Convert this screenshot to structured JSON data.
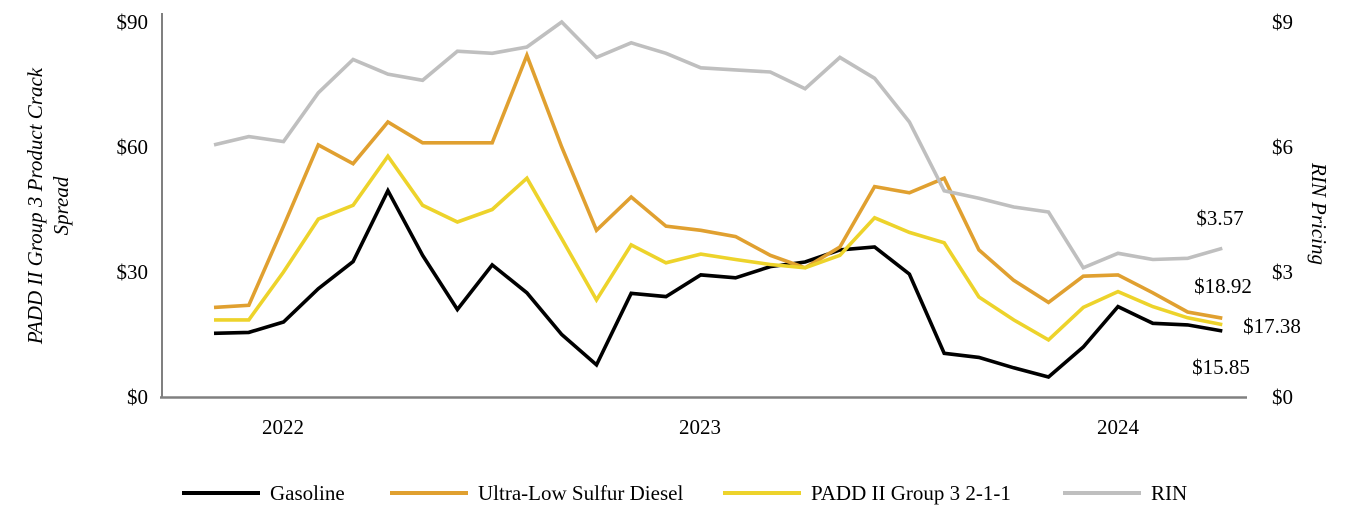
{
  "chart_data": {
    "type": "line",
    "x_monthly": [
      "2021-11",
      "2021-12",
      "2022-01",
      "2022-02",
      "2022-03",
      "2022-04",
      "2022-05",
      "2022-06",
      "2022-07",
      "2022-08",
      "2022-09",
      "2022-10",
      "2022-11",
      "2022-12",
      "2023-01",
      "2023-02",
      "2023-03",
      "2023-04",
      "2023-05",
      "2023-06",
      "2023-07",
      "2023-08",
      "2023-09",
      "2023-10",
      "2023-11",
      "2023-12",
      "2024-01",
      "2024-02",
      "2024-03",
      "2024-04"
    ],
    "series": [
      {
        "name": "Gasoline",
        "axis": "left",
        "color": "#000000",
        "values": [
          15.3,
          15.5,
          18,
          26,
          32.5,
          49.5,
          34,
          21,
          31.7,
          25,
          15,
          7.7,
          24.9,
          24.1,
          29.3,
          28.6,
          31.3,
          32.4,
          35.3,
          36,
          29.5,
          10.5,
          9.5,
          7,
          4.8,
          12,
          21.7,
          17.7,
          17.3,
          15.85
        ]
      },
      {
        "name": "Ultra-Low Sulfur Diesel",
        "axis": "left",
        "color": "#E0A030",
        "values": [
          21.5,
          22,
          41,
          60.5,
          56,
          66,
          61,
          61,
          61,
          82,
          60,
          40,
          48,
          41,
          40,
          38.5,
          34,
          31,
          36,
          50.5,
          49,
          52.5,
          35.3,
          28,
          22.7,
          29,
          29.3,
          25,
          20.4,
          18.92
        ]
      },
      {
        "name": "PADD II Group 3 2-1-1",
        "axis": "left",
        "color": "#EDD32B",
        "values": [
          18.5,
          18.5,
          30,
          42.7,
          46,
          57.8,
          46,
          42,
          45,
          52.5,
          38,
          23.3,
          36.5,
          32.2,
          34.3,
          33,
          31.8,
          31,
          34,
          43,
          39.5,
          37,
          24,
          18.5,
          13.7,
          21.5,
          25.3,
          21.7,
          19,
          17.38
        ]
      },
      {
        "name": "RIN",
        "axis": "right",
        "color": "#BFBFBF",
        "values": [
          6.05,
          6.25,
          6.13,
          7.3,
          8.1,
          7.75,
          7.6,
          8.3,
          8.25,
          8.4,
          9,
          8.15,
          8.5,
          8.25,
          7.9,
          7.85,
          7.8,
          7.4,
          8.15,
          7.65,
          6.6,
          4.95,
          4.77,
          4.56,
          4.44,
          3.1,
          3.45,
          3.3,
          3.33,
          3.57
        ]
      }
    ],
    "left_axis": {
      "title": "PADD II Group 3 Product Crack Spread",
      "title_lines": [
        "PADD II Group 3 Product Crack",
        "Spread"
      ],
      "ticks": [
        "$90",
        "$60",
        "$30",
        "$0"
      ],
      "range": [
        0,
        90
      ]
    },
    "right_axis": {
      "title": "RIN Pricing",
      "ticks": [
        "$9",
        "$6",
        "$3",
        "$0"
      ],
      "range": [
        0,
        9
      ]
    },
    "x_axis": {
      "tick_labels": [
        "2022",
        "2023",
        "2024"
      ]
    },
    "end_labels": [
      "$3.57",
      "$18.92",
      "$17.38",
      "$15.85"
    ],
    "legend": [
      "Gasoline",
      "Ultra-Low Sulfur Diesel",
      "PADD II Group 3 2-1-1",
      "RIN"
    ],
    "grid": "off",
    "legend_position": "bottom"
  },
  "colors": {
    "axis_line": "#808080",
    "text": "#000000",
    "background": "#ffffff"
  }
}
